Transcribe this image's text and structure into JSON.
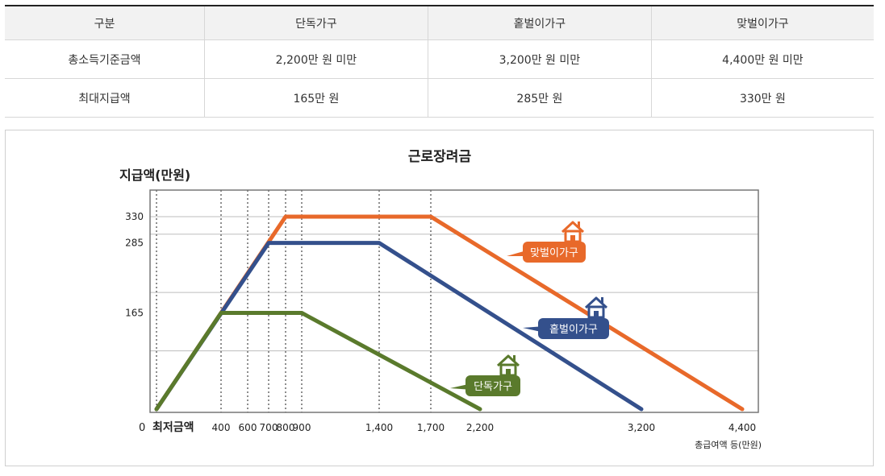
{
  "table": {
    "headers": [
      "구분",
      "단독가구",
      "홑벌이가구",
      "맞벌이가구"
    ],
    "rows": [
      [
        "총소득기준금액",
        "2,200만 원 미만",
        "3,200만 원 미만",
        "4,400만 원 미만"
      ],
      [
        "최대지급액",
        "165만 원",
        "285만 원",
        "330만 원"
      ]
    ]
  },
  "chart_data": {
    "type": "line",
    "title": "근로장려금",
    "ylabel": "지급액(만원)",
    "xlabel": "총급여액 등(만원)",
    "x_origin_label": "0",
    "x_origin_sublabel": "최저금액",
    "x_ticks": [
      400,
      600,
      700,
      800,
      900,
      1400,
      1700,
      2200,
      3200,
      4400
    ],
    "x_tick_labels": [
      "400",
      "600",
      "700",
      "800",
      "900",
      "1,400",
      "1,700",
      "2,200",
      "3,200",
      "4,400"
    ],
    "y_ticks": [
      165,
      285,
      330
    ],
    "y_tick_labels": [
      "165",
      "285",
      "330"
    ],
    "ylim": [
      0,
      360
    ],
    "grid": true,
    "series": [
      {
        "name": "맞벌이가구",
        "color": "#e8692a",
        "x": [
          0,
          800,
          1700,
          4400
        ],
        "y": [
          0,
          330,
          330,
          0
        ]
      },
      {
        "name": "홑벌이가구",
        "color": "#34508c",
        "x": [
          0,
          700,
          1400,
          3200
        ],
        "y": [
          0,
          285,
          285,
          0
        ]
      },
      {
        "name": "단독가구",
        "color": "#5a7a2c",
        "x": [
          0,
          400,
          900,
          2200
        ],
        "y": [
          0,
          165,
          165,
          0
        ]
      }
    ],
    "icons": [
      "house-icon",
      "house-icon",
      "house-icon"
    ]
  }
}
